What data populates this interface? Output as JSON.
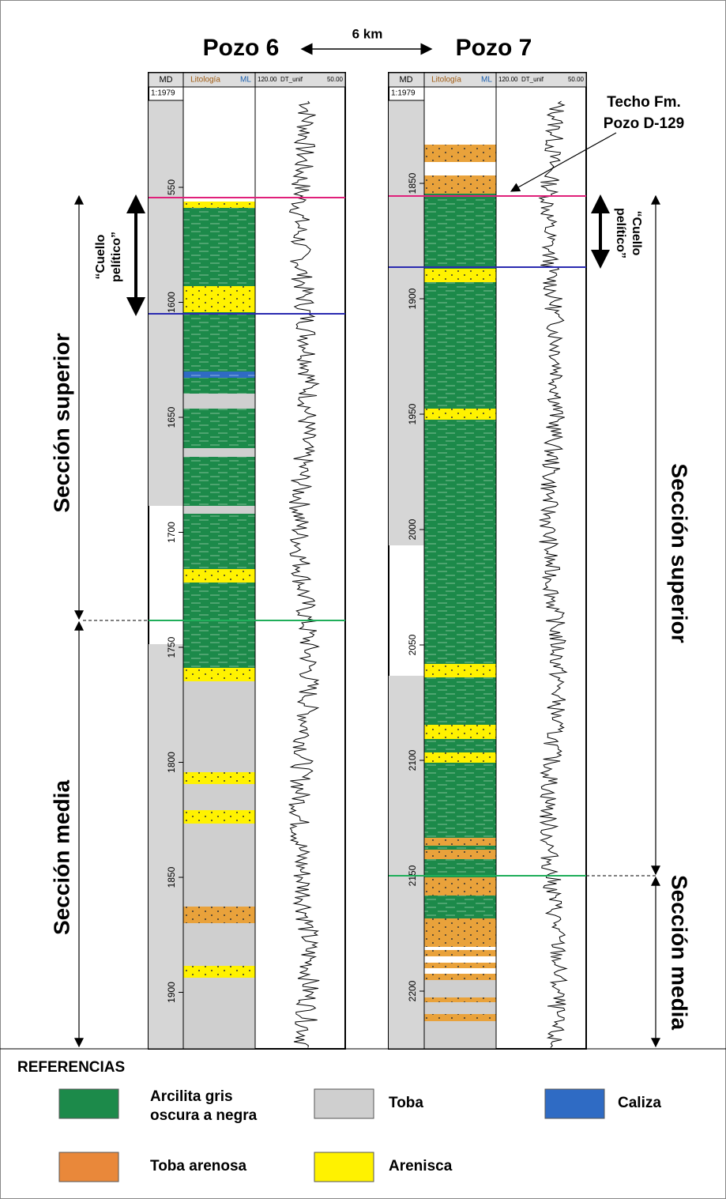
{
  "title": {
    "left": "Pozo 6",
    "distance": "6 km",
    "right": "Pozo 7"
  },
  "wells": [
    {
      "header": {
        "md": "MD",
        "lithology": "Litología",
        "ml": "ML",
        "dt_left": "120.00",
        "dt_name": "DT_unif",
        "dt_right": "50.00",
        "scale": "1:1979"
      },
      "depths": [
        "550",
        "1600",
        "1650",
        "1700",
        "1750",
        "1800",
        "1850",
        "1900"
      ]
    },
    {
      "header": {
        "md": "MD",
        "lithology": "Litología",
        "ml": "ML",
        "dt_left": "120.00",
        "dt_name": "DT_unif",
        "dt_right": "50.00",
        "scale": "1:1979"
      },
      "depths": [
        "1850",
        "1900",
        "1950",
        "2000",
        "2050",
        "2100",
        "2150",
        "2200"
      ]
    }
  ],
  "annotations": {
    "techo": [
      "Techo Fm.",
      "Pozo D-129"
    ],
    "cuello_left": [
      "“Cuello",
      "pelítico”"
    ],
    "cuello_right": [
      "“Cuello",
      "pelítico”"
    ],
    "left_superior": "Sección superior",
    "left_media": "Sección media",
    "right_superior": "Sección superior",
    "right_media": "Sección media"
  },
  "legend": {
    "title": "REFERENCIAS",
    "items": [
      {
        "lines": [
          "Arcilita gris",
          "oscura a negra"
        ]
      },
      {
        "lines": [
          "Toba"
        ]
      },
      {
        "lines": [
          "Caliza"
        ]
      },
      {
        "lines": [
          "Toba arenosa"
        ]
      },
      {
        "lines": [
          "Arenisca"
        ]
      }
    ]
  }
}
